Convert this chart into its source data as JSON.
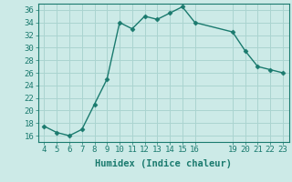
{
  "x": [
    4,
    5,
    6,
    7,
    8,
    9,
    10,
    11,
    12,
    13,
    14,
    15,
    16,
    19,
    20,
    21,
    22,
    23
  ],
  "y": [
    17.5,
    16.5,
    16.0,
    17.0,
    21.0,
    25.0,
    34.0,
    33.0,
    35.0,
    34.5,
    35.5,
    36.5,
    34.0,
    32.5,
    29.5,
    27.0,
    26.5,
    26.0
  ],
  "line_color": "#1a7a6e",
  "marker": "D",
  "marker_size": 2.5,
  "bg_color": "#cceae7",
  "grid_color": "#aad4d0",
  "xlabel": "Humidex (Indice chaleur)",
  "xlim": [
    3.5,
    23.5
  ],
  "ylim": [
    15,
    37
  ],
  "yticks": [
    16,
    18,
    20,
    22,
    24,
    26,
    28,
    30,
    32,
    34,
    36
  ],
  "xticks": [
    4,
    5,
    6,
    7,
    8,
    9,
    10,
    11,
    12,
    13,
    14,
    15,
    16,
    19,
    20,
    21,
    22,
    23
  ],
  "xlabel_fontsize": 7.5,
  "tick_fontsize": 6.5,
  "linewidth": 1.0
}
